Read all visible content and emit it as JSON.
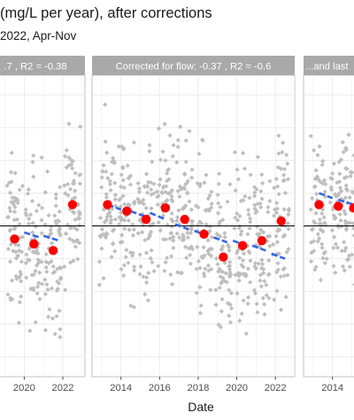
{
  "title": "(mg/L per year), after corrections",
  "subtitle": "2022, Apr-Nov",
  "chart_data": {
    "type": "scatter",
    "xlabel": "Date",
    "ylabel": "",
    "xlim": [
      2012.5,
      2023.0
    ],
    "ylim": [
      -4.6,
      4.6
    ],
    "reference_line_y": 0,
    "grid": true,
    "legend": "none",
    "colors": {
      "raw_points": "#BEBEBE",
      "annual_means": "#FF0000",
      "trend": "#3366E6",
      "strip_background": "#A9A9A9",
      "panel_background": "#FFFFFF",
      "grid": "#EBEBEB"
    },
    "panels": [
      {
        "strip_label": ".7 , R2 =  -0.38",
        "x_ticks": [
          2020,
          2022
        ],
        "annual_means": [
          {
            "x": 2019.5,
            "y": -0.4
          },
          {
            "x": 2020.5,
            "y": -0.55
          },
          {
            "x": 2021.5,
            "y": -0.75
          },
          {
            "x": 2022.5,
            "y": 0.65
          }
        ],
        "trend_segments": [
          {
            "x": [
              2020.0,
              2020.8
            ],
            "y": [
              -0.2,
              -0.35
            ]
          },
          {
            "x": [
              2021.0,
              2021.8
            ],
            "y": [
              -0.3,
              -0.45
            ]
          }
        ]
      },
      {
        "strip_label": "Corrected for flow: -0.37 , R2 =  -0.6",
        "x_ticks": [
          2014,
          2016,
          2018,
          2020,
          2022
        ],
        "annual_means": [
          {
            "x": 2013.3,
            "y": 0.65
          },
          {
            "x": 2014.3,
            "y": 0.45
          },
          {
            "x": 2015.3,
            "y": 0.2
          },
          {
            "x": 2016.3,
            "y": 0.55
          },
          {
            "x": 2017.3,
            "y": 0.2
          },
          {
            "x": 2018.3,
            "y": -0.25
          },
          {
            "x": 2019.3,
            "y": -0.95
          },
          {
            "x": 2020.3,
            "y": -0.6
          },
          {
            "x": 2021.3,
            "y": -0.45
          },
          {
            "x": 2022.3,
            "y": 0.15
          }
        ],
        "trend_segments": [
          {
            "x": [
              2013.3,
              2014.0
            ],
            "y": [
              0.65,
              0.5
            ]
          },
          {
            "x": [
              2014.5,
              2015.2
            ],
            "y": [
              0.45,
              0.3
            ]
          },
          {
            "x": [
              2015.5,
              2016.3
            ],
            "y": [
              0.4,
              0.2
            ]
          },
          {
            "x": [
              2016.8,
              2017.5
            ],
            "y": [
              0.05,
              -0.1
            ]
          },
          {
            "x": [
              2017.8,
              2018.5
            ],
            "y": [
              -0.15,
              -0.3
            ]
          },
          {
            "x": [
              2018.8,
              2019.5
            ],
            "y": [
              -0.35,
              -0.5
            ]
          },
          {
            "x": [
              2019.8,
              2020.5
            ],
            "y": [
              -0.45,
              -0.6
            ]
          },
          {
            "x": [
              2020.8,
              2021.5
            ],
            "y": [
              -0.6,
              -0.75
            ]
          },
          {
            "x": [
              2021.8,
              2022.5
            ],
            "y": [
              -0.85,
              -1.0
            ]
          }
        ]
      },
      {
        "strip_label": "...and last",
        "x_ticks": [
          2014
        ],
        "annual_means": [
          {
            "x": 2013.3,
            "y": 0.65
          },
          {
            "x": 2014.3,
            "y": 0.6
          },
          {
            "x": 2015.1,
            "y": 0.55
          }
        ],
        "trend_segments": [
          {
            "x": [
              2013.3,
              2014.0
            ],
            "y": [
              1.0,
              0.85
            ]
          },
          {
            "x": [
              2014.3,
              2015.1
            ],
            "y": [
              0.8,
              0.65
            ]
          }
        ]
      }
    ]
  }
}
